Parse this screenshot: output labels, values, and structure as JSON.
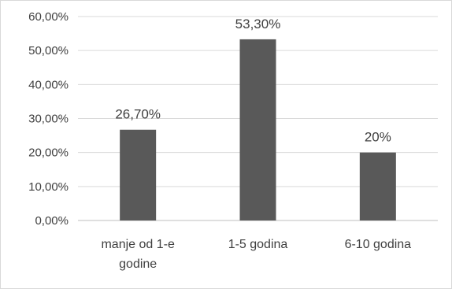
{
  "chart_data": {
    "type": "bar",
    "categories": [
      [
        "manje od 1-e",
        "godine"
      ],
      [
        "1-5 godina"
      ],
      [
        "6-10 godina"
      ]
    ],
    "values": [
      26.7,
      53.3,
      20
    ],
    "data_labels": [
      "26,70%",
      "53,30%",
      "20%"
    ],
    "ylim": [
      0,
      60
    ],
    "y_ticks": [
      "0,00%",
      "10,00%",
      "20,00%",
      "30,00%",
      "40,00%",
      "50,00%",
      "60,00%"
    ],
    "grid": true,
    "legend": "none",
    "bar_color": "#595959",
    "title": "",
    "xlabel": "",
    "ylabel": ""
  }
}
